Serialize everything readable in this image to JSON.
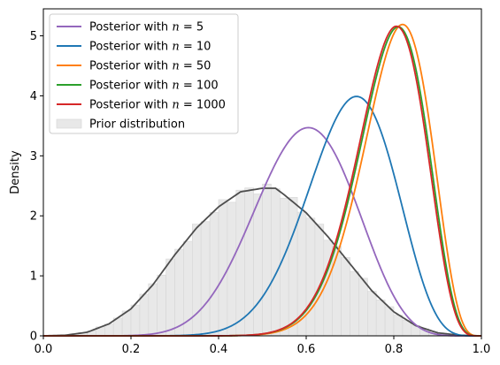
{
  "chart_data": {
    "type": "line",
    "title": "",
    "xlabel": "",
    "ylabel": "Density",
    "xlim": [
      0.0,
      1.0
    ],
    "ylim": [
      0,
      5.45
    ],
    "x_ticks": [
      "0.0",
      "0.2",
      "0.4",
      "0.6",
      "0.8",
      "1.0"
    ],
    "y_ticks": [
      "0",
      "1",
      "2",
      "3",
      "4",
      "5"
    ],
    "grid": false,
    "legend_position": "top-left",
    "series": [
      {
        "name": "Posterior with n = 5",
        "legend_prefix": "Posterior with ",
        "legend_var": "n",
        "legend_suffix": " = 5",
        "color": "#9467bd",
        "mode": 0.605,
        "peak": 3.47
      },
      {
        "name": "Posterior with n = 10",
        "legend_prefix": "Posterior with ",
        "legend_var": "n",
        "legend_suffix": " = 10",
        "color": "#1f77b4",
        "mode": 0.715,
        "peak": 3.99
      },
      {
        "name": "Posterior with n = 50",
        "legend_prefix": "Posterior with ",
        "legend_var": "n",
        "legend_suffix": " = 50",
        "color": "#ff7f0e",
        "mode": 0.82,
        "peak": 5.19
      },
      {
        "name": "Posterior with n = 100",
        "legend_prefix": "Posterior with ",
        "legend_var": "n",
        "legend_suffix": " = 100",
        "color": "#2ca02c",
        "mode": 0.81,
        "peak": 5.15
      },
      {
        "name": "Posterior with n = 1000",
        "legend_prefix": "Posterior with ",
        "legend_var": "n",
        "legend_suffix": " = 1000",
        "color": "#d62728",
        "mode": 0.806,
        "peak": 5.16
      }
    ],
    "prior": {
      "name": "Prior distribution",
      "bar_color": "#e8e8e8",
      "line_color": "#4d4d4d",
      "bin_width": 0.02,
      "kde_x": [
        0.0,
        0.05,
        0.1,
        0.15,
        0.2,
        0.25,
        0.3,
        0.35,
        0.4,
        0.45,
        0.5,
        0.53,
        0.55,
        0.6,
        0.65,
        0.7,
        0.75,
        0.8,
        0.85,
        0.9,
        0.95,
        1.0
      ],
      "kde_y": [
        0.0,
        0.01,
        0.06,
        0.2,
        0.45,
        0.85,
        1.35,
        1.8,
        2.15,
        2.4,
        2.46,
        2.46,
        2.35,
        2.05,
        1.65,
        1.2,
        0.75,
        0.4,
        0.17,
        0.05,
        0.01,
        0.0
      ]
    }
  }
}
